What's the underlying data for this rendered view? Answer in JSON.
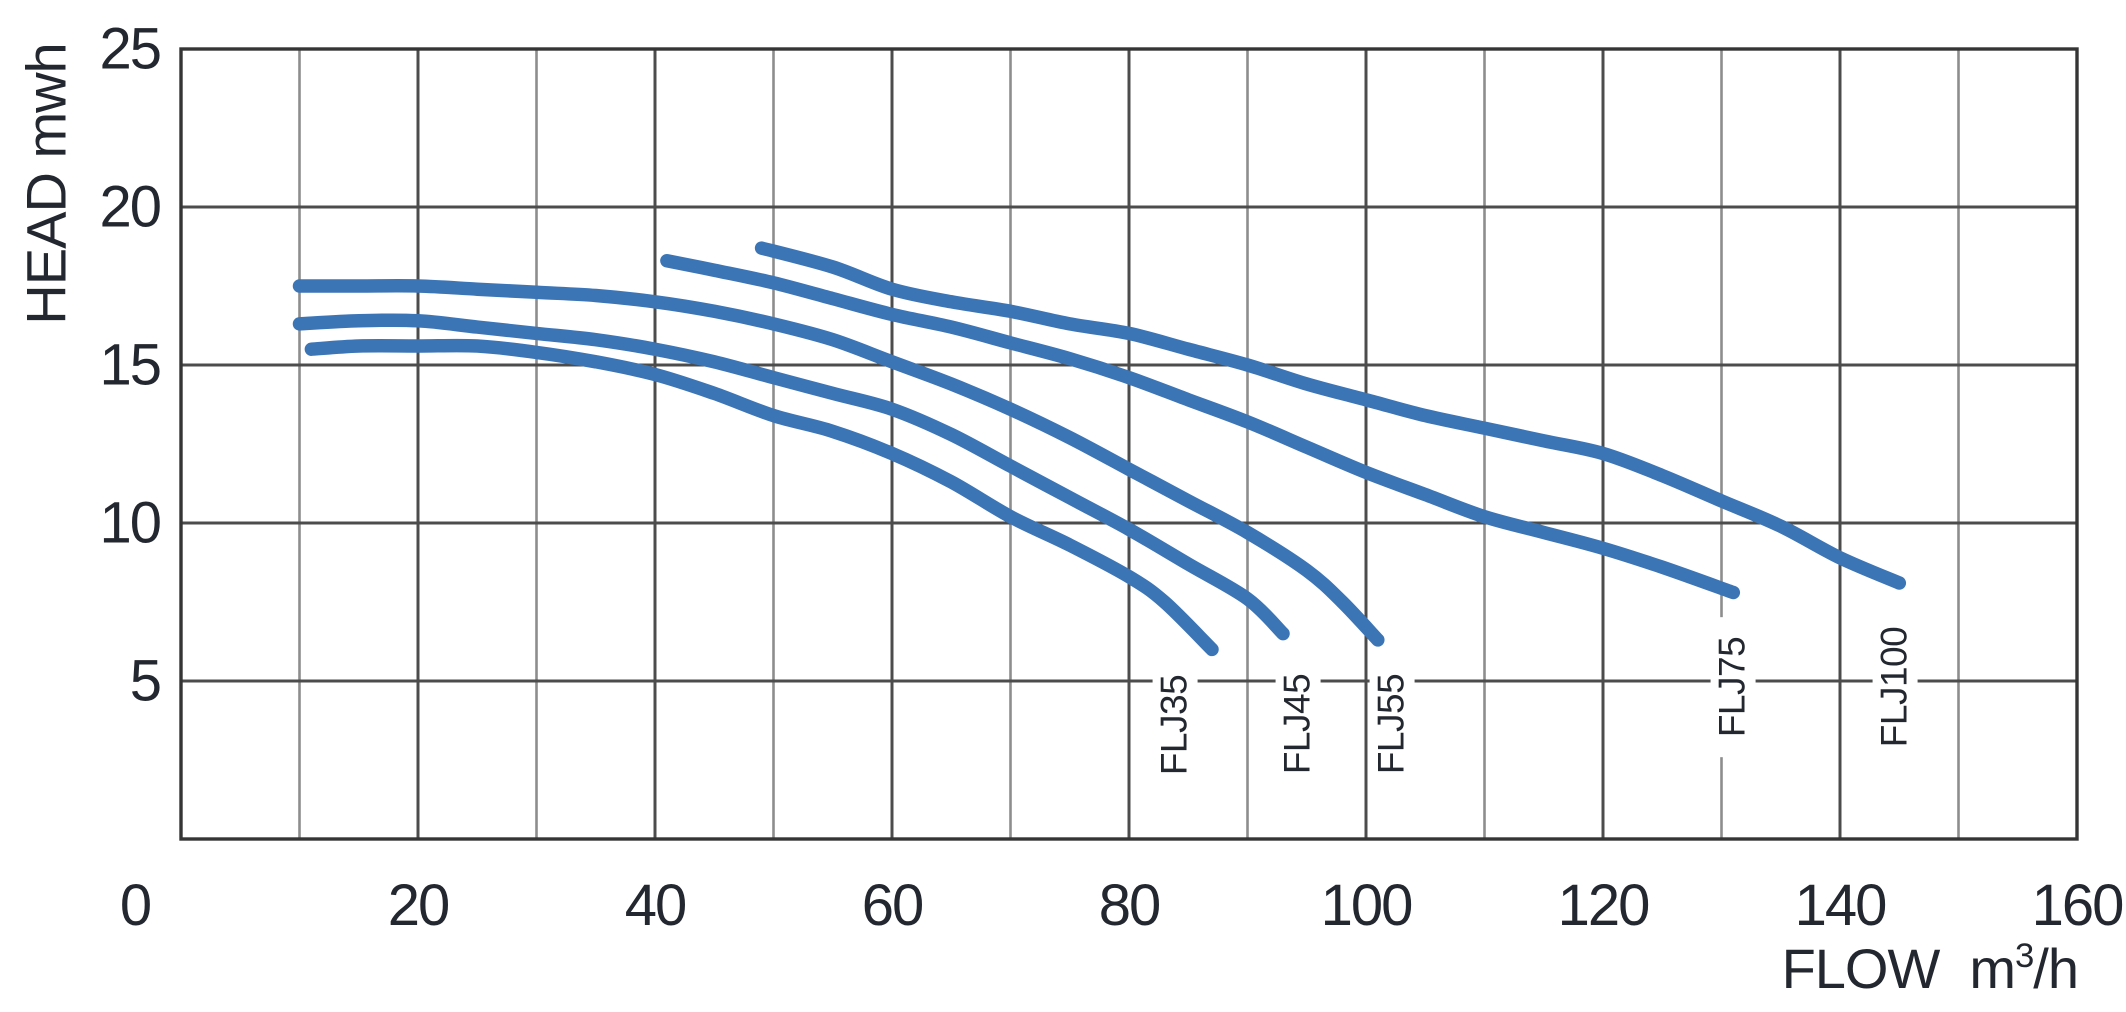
{
  "chart_data": {
    "type": "line",
    "title": "",
    "ylabel": "HEAD mwh",
    "xlabel": {
      "word": "FLOW",
      "unit_pre": "m",
      "unit_sup": "3",
      "unit_post": "/h"
    },
    "xlim": [
      0,
      160
    ],
    "ylim": [
      0,
      25
    ],
    "x_ticks": [
      0,
      20,
      40,
      60,
      80,
      100,
      120,
      140,
      160
    ],
    "y_ticks": [
      5,
      10,
      15,
      20,
      25
    ],
    "x_tick_step": 20,
    "x_minor_step": 10,
    "y_tick_step": 5,
    "grid": true,
    "legend_position": "rotated-labels-at-curve-ends",
    "colors": {
      "curve": "#3c75b5",
      "grid_major": "#4c4c4c",
      "grid_minor": "#8d8d8d",
      "border": "#353535",
      "text": "#23272f",
      "background": "#ffffff"
    },
    "series": [
      {
        "name": "FLJ35",
        "label_pos": [
          83.9,
          3.6
        ],
        "points": [
          [
            11,
            15.5
          ],
          [
            15,
            15.6
          ],
          [
            20,
            15.6
          ],
          [
            25,
            15.6
          ],
          [
            30,
            15.4
          ],
          [
            35,
            15.1
          ],
          [
            40,
            14.7
          ],
          [
            45,
            14.1
          ],
          [
            50,
            13.4
          ],
          [
            55,
            12.9
          ],
          [
            60,
            12.2
          ],
          [
            65,
            11.3
          ],
          [
            70,
            10.2
          ],
          [
            75,
            9.3
          ],
          [
            80,
            8.3
          ],
          [
            83,
            7.5
          ],
          [
            87,
            6.0
          ]
        ]
      },
      {
        "name": "FLJ45",
        "label_pos": [
          94.3,
          3.65
        ],
        "points": [
          [
            10,
            16.3
          ],
          [
            15,
            16.4
          ],
          [
            20,
            16.4
          ],
          [
            25,
            16.2
          ],
          [
            30,
            16.0
          ],
          [
            35,
            15.8
          ],
          [
            40,
            15.5
          ],
          [
            45,
            15.1
          ],
          [
            50,
            14.6
          ],
          [
            55,
            14.1
          ],
          [
            60,
            13.6
          ],
          [
            65,
            12.8
          ],
          [
            70,
            11.8
          ],
          [
            75,
            10.8
          ],
          [
            80,
            9.8
          ],
          [
            85,
            8.7
          ],
          [
            90,
            7.6
          ],
          [
            93,
            6.5
          ]
        ]
      },
      {
        "name": "FLJ55",
        "label_pos": [
          102.2,
          3.65
        ],
        "points": [
          [
            10,
            17.5
          ],
          [
            15,
            17.5
          ],
          [
            20,
            17.5
          ],
          [
            25,
            17.4
          ],
          [
            30,
            17.3
          ],
          [
            35,
            17.2
          ],
          [
            40,
            17.0
          ],
          [
            45,
            16.7
          ],
          [
            50,
            16.3
          ],
          [
            55,
            15.8
          ],
          [
            60,
            15.1
          ],
          [
            65,
            14.4
          ],
          [
            70,
            13.6
          ],
          [
            75,
            12.7
          ],
          [
            80,
            11.7
          ],
          [
            85,
            10.7
          ],
          [
            90,
            9.7
          ],
          [
            95,
            8.5
          ],
          [
            98,
            7.5
          ],
          [
            101,
            6.3
          ]
        ]
      },
      {
        "name": "FLJ75",
        "label_pos": [
          131.0,
          4.8
        ],
        "points": [
          [
            41,
            18.3
          ],
          [
            45,
            18.0
          ],
          [
            50,
            17.6
          ],
          [
            55,
            17.1
          ],
          [
            60,
            16.6
          ],
          [
            65,
            16.2
          ],
          [
            70,
            15.7
          ],
          [
            75,
            15.2
          ],
          [
            80,
            14.6
          ],
          [
            85,
            13.9
          ],
          [
            90,
            13.2
          ],
          [
            95,
            12.4
          ],
          [
            100,
            11.6
          ],
          [
            105,
            10.9
          ],
          [
            110,
            10.2
          ],
          [
            115,
            9.7
          ],
          [
            120,
            9.2
          ],
          [
            125,
            8.6
          ],
          [
            131,
            7.8
          ]
        ]
      },
      {
        "name": "FLJ100",
        "label_pos": [
          144.6,
          4.8
        ],
        "points": [
          [
            49,
            18.7
          ],
          [
            55,
            18.1
          ],
          [
            60,
            17.4
          ],
          [
            65,
            17.0
          ],
          [
            70,
            16.7
          ],
          [
            75,
            16.3
          ],
          [
            80,
            16.0
          ],
          [
            85,
            15.5
          ],
          [
            90,
            15.0
          ],
          [
            95,
            14.4
          ],
          [
            100,
            13.9
          ],
          [
            105,
            13.4
          ],
          [
            110,
            13.0
          ],
          [
            115,
            12.6
          ],
          [
            120,
            12.2
          ],
          [
            125,
            11.5
          ],
          [
            130,
            10.7
          ],
          [
            135,
            9.9
          ],
          [
            140,
            8.9
          ],
          [
            145,
            8.1
          ]
        ]
      }
    ]
  }
}
